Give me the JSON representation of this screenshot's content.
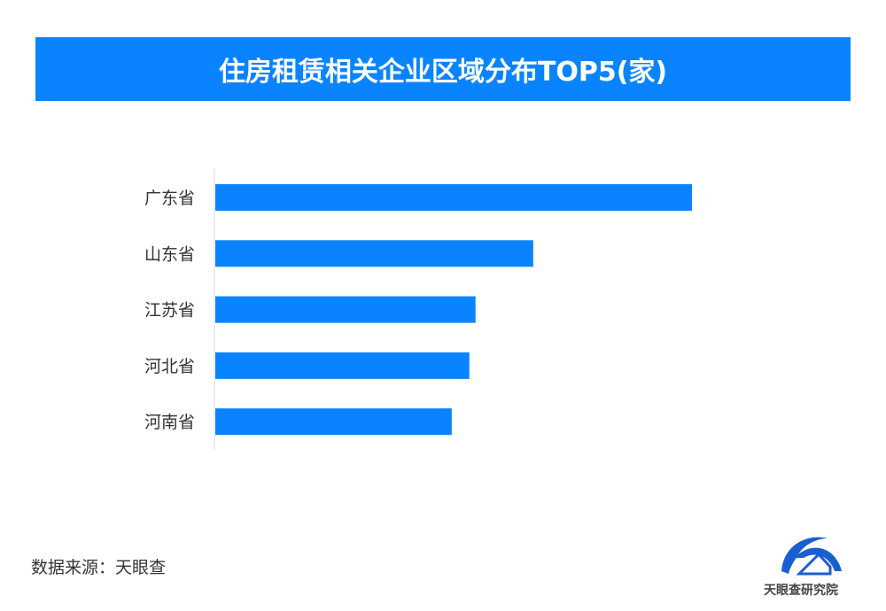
{
  "chart_data": {
    "type": "bar",
    "orientation": "horizontal",
    "title": "住房租赁相关企业区域分布TOP5(家)",
    "categories": [
      "广东省",
      "山东省",
      "江苏省",
      "河北省",
      "河南省"
    ],
    "values": [
      100,
      66.7,
      54.6,
      53.3,
      49.6
    ],
    "value_scale": "relative (no axis values printed)",
    "xlabel": "",
    "ylabel": "",
    "grid": false,
    "bar_color": "#0a84fe",
    "title_bg_color": "#0a84fe"
  },
  "footer": {
    "source": "数据来源：天眼查",
    "logo_text": "天眼查研究院"
  }
}
